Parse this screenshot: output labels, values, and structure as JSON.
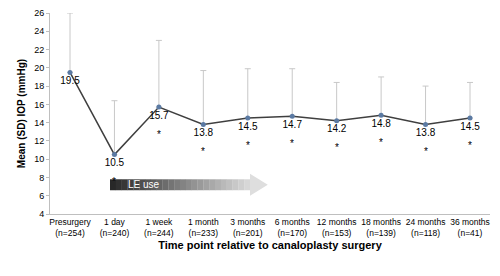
{
  "chart_data": {
    "type": "line",
    "categories": [
      "Presurgery (n=254)",
      "1 day (n=240)",
      "1 week (n=244)",
      "1 month (n=233)",
      "3 months (n=201)",
      "6 months (n=170)",
      "12 months (n=153)",
      "18 months (n=139)",
      "24 months (n=118)",
      "36 months (n=41)"
    ],
    "values": [
      19.5,
      10.5,
      15.7,
      13.8,
      14.5,
      14.7,
      14.2,
      14.8,
      13.8,
      14.5
    ],
    "sd": [
      6.5,
      5.9,
      7.3,
      5.9,
      5.4,
      5.2,
      4.2,
      4.2,
      4.2,
      3.9
    ],
    "point_notes": [
      null,
      "*",
      "*",
      "*",
      "*",
      "*",
      "*",
      "*",
      "*",
      "*"
    ],
    "annotations": [
      {
        "text": "LE use",
        "from": "1 day (n=240)",
        "to": "3 months (n=201)"
      }
    ],
    "x_label": "Time point relative to canaloplasty surgery",
    "y_label": "Mean (SD) IOP (mmHg)",
    "ylim": [
      4,
      26
    ],
    "yticks": [
      4,
      6,
      8,
      10,
      12,
      14,
      16,
      18,
      20,
      22,
      24,
      26
    ],
    "color": "#3f3f3f",
    "marker": "circle",
    "data_labels": true,
    "grid": false
  }
}
